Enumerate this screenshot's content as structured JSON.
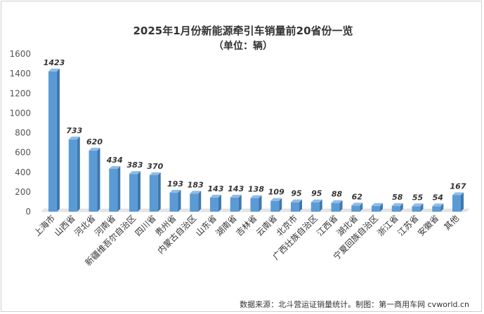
{
  "chart_data": {
    "type": "bar",
    "title": "2025年1月份新能源牵引车销量前20省份一览",
    "subtitle": "（单位：辆）",
    "xlabel": "",
    "ylabel": "",
    "ylim": [
      0,
      1600
    ],
    "yticks": [
      0,
      200,
      400,
      600,
      800,
      1000,
      1200,
      1400,
      1600
    ],
    "grid": false,
    "legend": "none",
    "categories": [
      "上海市",
      "山西省",
      "河北省",
      "河南省",
      "新疆维吾尔自治区",
      "四川省",
      "贵州省",
      "内蒙古自治区",
      "山东省",
      "湖南省",
      "吉林省",
      "云南省",
      "北京市",
      "广西壮族自治区",
      "江西省",
      "湖北省",
      "宁夏回族自治区",
      "浙江省",
      "江苏省",
      "安徽省",
      "其他"
    ],
    "values": [
      1423,
      733,
      620,
      434,
      383,
      370,
      193,
      183,
      143,
      143,
      138,
      109,
      95,
      95,
      88,
      62,
      59,
      58,
      55,
      54,
      167
    ],
    "data_labels_shown": [
      true,
      true,
      true,
      true,
      true,
      true,
      true,
      true,
      true,
      true,
      true,
      true,
      true,
      true,
      true,
      true,
      false,
      true,
      true,
      true,
      true
    ],
    "bar_color": "#5b9bd5",
    "source_note": "数据来源：北斗营运证销量统计。制图：第一商用车网 cvworld.cn"
  }
}
